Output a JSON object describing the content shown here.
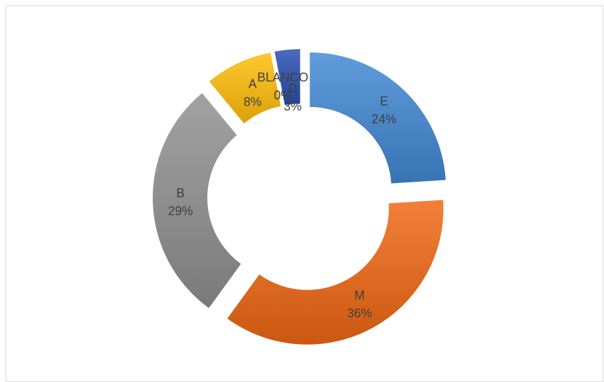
{
  "chart_data": {
    "type": "pie",
    "variant": "exploded-doughnut",
    "title": "",
    "legend": "none",
    "slices": [
      {
        "category": "E",
        "value": 24,
        "percent_label": "24%",
        "color": "#4a86c5"
      },
      {
        "category": "M",
        "value": 36,
        "percent_label": "36%",
        "color": "#dd6a22"
      },
      {
        "category": "B",
        "value": 29,
        "percent_label": "29%",
        "color": "#8c8c8c"
      },
      {
        "category": "A",
        "value": 8,
        "percent_label": "8%",
        "color": "#edb21a"
      },
      {
        "category": "BLANCO",
        "value": 0,
        "percent_label": "0%",
        "color": "#5a5a5a"
      },
      {
        "category": "D",
        "value": 3,
        "percent_label": "3%",
        "color": "#3556a8"
      }
    ]
  }
}
